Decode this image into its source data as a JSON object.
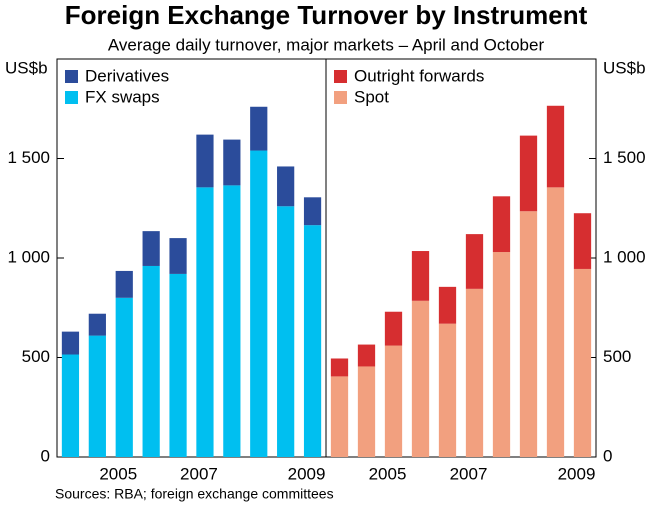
{
  "title": "Foreign Exchange Turnover by Instrument",
  "subtitle": "Average daily turnover, major markets – April and October",
  "source": "Sources: RBA; foreign exchange committees",
  "chart_data": [
    {
      "type": "bar",
      "stacked": true,
      "ylabel": "US$b",
      "axis_side": "left",
      "categories": [
        null,
        null,
        "2005",
        null,
        null,
        "2007",
        null,
        null,
        null,
        "2009"
      ],
      "series": [
        {
          "name": "FX swaps",
          "color": "#00bff0",
          "values": [
            515,
            610,
            800,
            960,
            920,
            1355,
            1365,
            1540,
            1260,
            1165
          ]
        },
        {
          "name": "Derivatives",
          "color": "#2b4c9b",
          "values": [
            115,
            110,
            135,
            175,
            180,
            265,
            230,
            220,
            200,
            140
          ]
        }
      ],
      "ylim": [
        0,
        2000
      ],
      "yticks": [
        0,
        500,
        {
          "value": 1000,
          "label": "1 000"
        },
        {
          "value": 1500,
          "label": "1 500"
        }
      ]
    },
    {
      "type": "bar",
      "stacked": true,
      "ylabel": "US$b",
      "axis_side": "right",
      "categories": [
        null,
        null,
        "2005",
        null,
        null,
        "2007",
        null,
        null,
        null,
        "2009"
      ],
      "series": [
        {
          "name": "Spot",
          "color": "#f2a07f",
          "values": [
            405,
            455,
            560,
            785,
            670,
            845,
            1030,
            1235,
            1355,
            945
          ]
        },
        {
          "name": "Outright forwards",
          "color": "#d62e30",
          "values": [
            90,
            110,
            170,
            250,
            185,
            275,
            280,
            380,
            410,
            280
          ]
        }
      ],
      "ylim": [
        0,
        2000
      ],
      "yticks": [
        0,
        500,
        {
          "value": 1000,
          "label": "1 000"
        },
        {
          "value": 1500,
          "label": "1 500"
        }
      ]
    }
  ]
}
